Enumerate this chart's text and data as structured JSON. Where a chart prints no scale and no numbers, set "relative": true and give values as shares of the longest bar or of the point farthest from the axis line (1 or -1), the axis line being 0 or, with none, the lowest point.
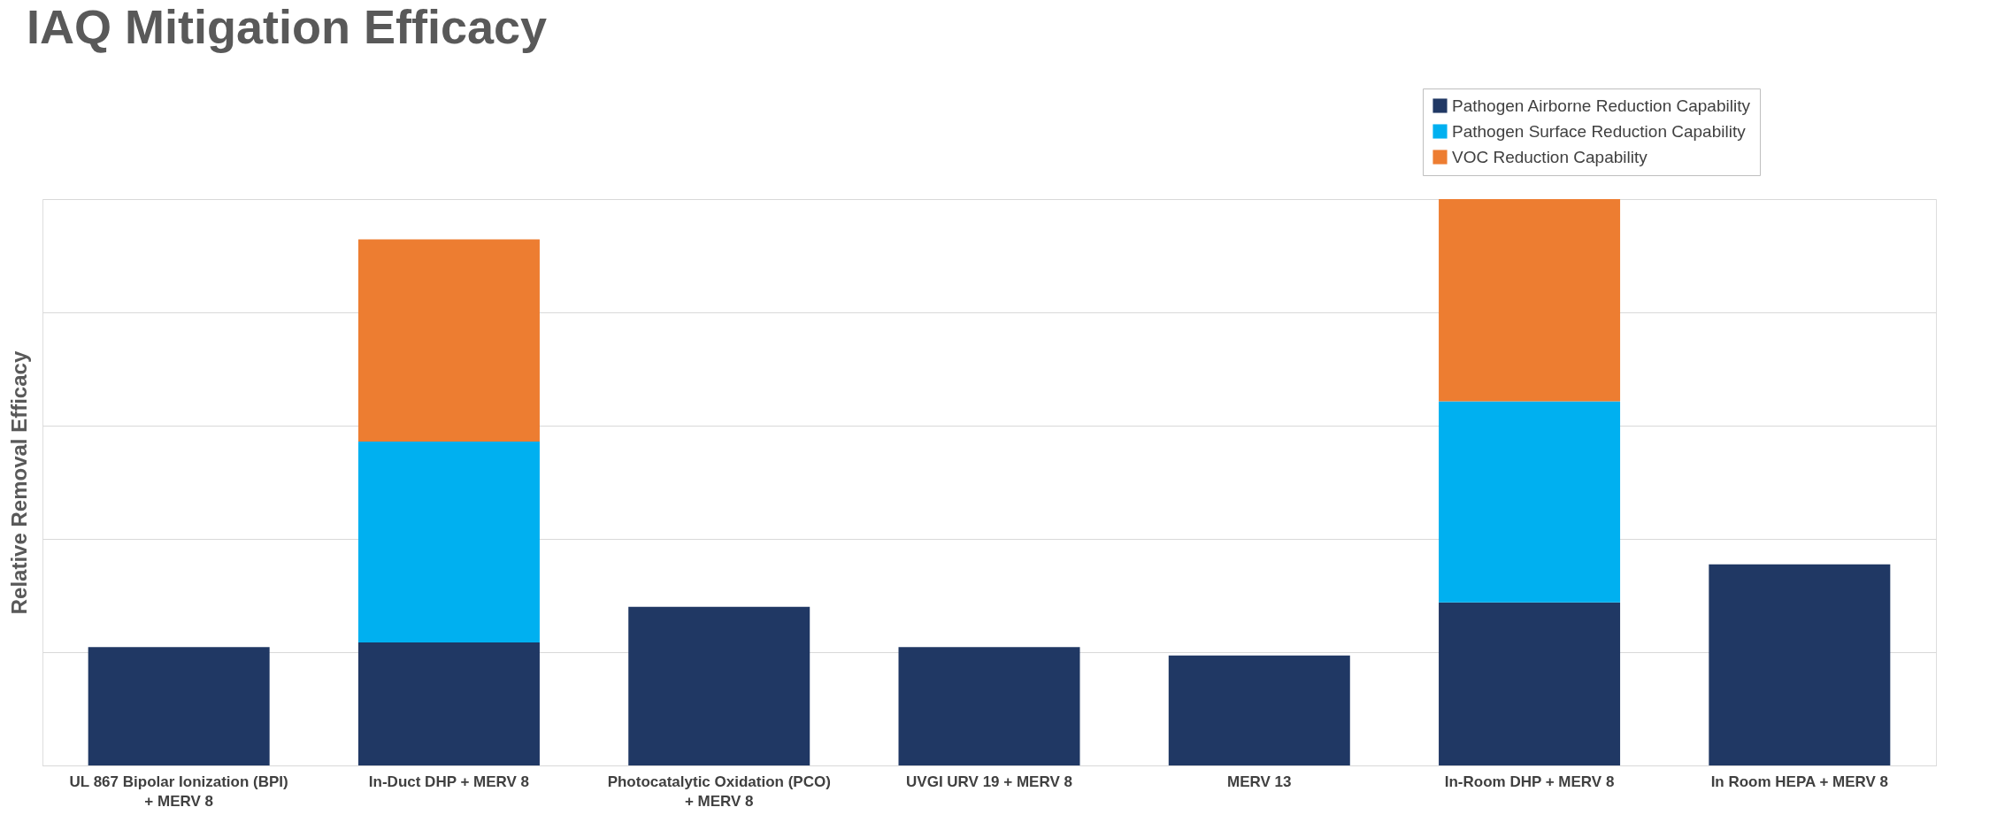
{
  "chart_data": {
    "type": "bar",
    "title": "IAQ Mitigation Efficacy",
    "ylabel": "Relative Removal Efficacy",
    "relative": true,
    "stacked": true,
    "grid": "y",
    "legend": "top right",
    "categories": [
      "UL 867 Bipolar Ionization (BPI)\n+ MERV 8",
      "In-Duct DHP + MERV 8",
      "Photocatalytic Oxidation (PCO)\n+ MERV 8",
      "UVGI URV 19 + MERV 8",
      "MERV 13",
      "In-Room DHP + MERV 8",
      "In Room HEPA + MERV 8"
    ],
    "series": [
      {
        "name": "Pathogen Airborne Reduction Capability",
        "color": "#203864",
        "values": [
          0.209,
          0.217,
          0.28,
          0.209,
          0.194,
          0.288,
          0.355
        ]
      },
      {
        "name": "Pathogen Surface Reduction Capability",
        "color": "#00b0f0",
        "values": [
          null,
          0.355,
          null,
          null,
          null,
          0.355,
          null
        ]
      },
      {
        "name": "VOC Reduction Capability",
        "color": "#ed7d31",
        "values": [
          null,
          0.357,
          null,
          null,
          null,
          0.357,
          null
        ]
      }
    ]
  }
}
